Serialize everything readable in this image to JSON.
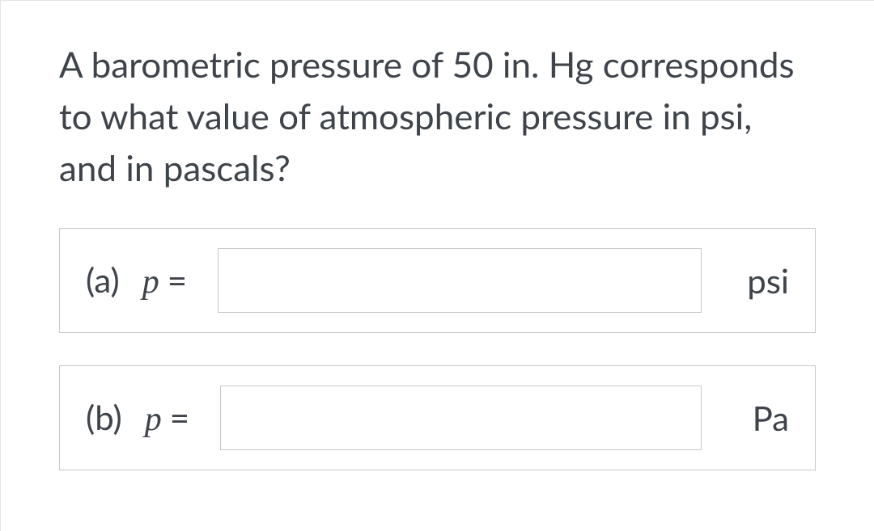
{
  "question": "A barometric pressure of 50 in. Hg corresponds to what value of atmospheric pressure in psi, and in pascals?",
  "parts": {
    "a": {
      "paren": "(a)",
      "variable": "p",
      "equals": "=",
      "value": "",
      "unit": "psi"
    },
    "b": {
      "paren": "(b)",
      "variable": "p",
      "equals": "=",
      "value": "",
      "unit": "Pa"
    }
  },
  "colors": {
    "text": "#3e444a",
    "border": "#c8c8c8",
    "background": "#ffffff"
  },
  "typography": {
    "question_fontsize_pt": 33,
    "label_fontsize_pt": 32
  }
}
